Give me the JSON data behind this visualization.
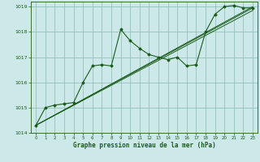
{
  "title": "",
  "xlabel": "Graphe pression niveau de la mer (hPa)",
  "xlim": [
    -0.5,
    23.5
  ],
  "ylim": [
    1014,
    1019.2
  ],
  "yticks": [
    1014,
    1015,
    1016,
    1017,
    1018,
    1019
  ],
  "xticks": [
    0,
    1,
    2,
    3,
    4,
    5,
    6,
    7,
    8,
    9,
    10,
    11,
    12,
    13,
    14,
    15,
    16,
    17,
    18,
    19,
    20,
    21,
    22,
    23
  ],
  "bg_color": "#cce8e8",
  "grid_color": "#88bbbb",
  "line_color": "#1a5c1a",
  "series": [
    [
      0,
      1014.3
    ],
    [
      1,
      1015.0
    ],
    [
      2,
      1015.1
    ],
    [
      3,
      1015.15
    ],
    [
      4,
      1015.2
    ],
    [
      5,
      1016.0
    ],
    [
      6,
      1016.65
    ],
    [
      7,
      1016.7
    ],
    [
      8,
      1016.65
    ],
    [
      9,
      1018.1
    ],
    [
      10,
      1017.65
    ],
    [
      11,
      1017.35
    ],
    [
      12,
      1017.1
    ],
    [
      13,
      1017.0
    ],
    [
      14,
      1016.9
    ],
    [
      15,
      1017.0
    ],
    [
      16,
      1016.65
    ],
    [
      17,
      1016.7
    ],
    [
      18,
      1018.0
    ],
    [
      19,
      1018.7
    ],
    [
      20,
      1019.0
    ],
    [
      21,
      1019.05
    ],
    [
      22,
      1018.95
    ],
    [
      23,
      1018.95
    ]
  ],
  "trend_lines": [
    [
      [
        0,
        23
      ],
      [
        1014.3,
        1019.0
      ]
    ],
    [
      [
        0,
        23
      ],
      [
        1014.3,
        1018.95
      ]
    ],
    [
      [
        0,
        23
      ],
      [
        1014.3,
        1018.85
      ]
    ]
  ]
}
